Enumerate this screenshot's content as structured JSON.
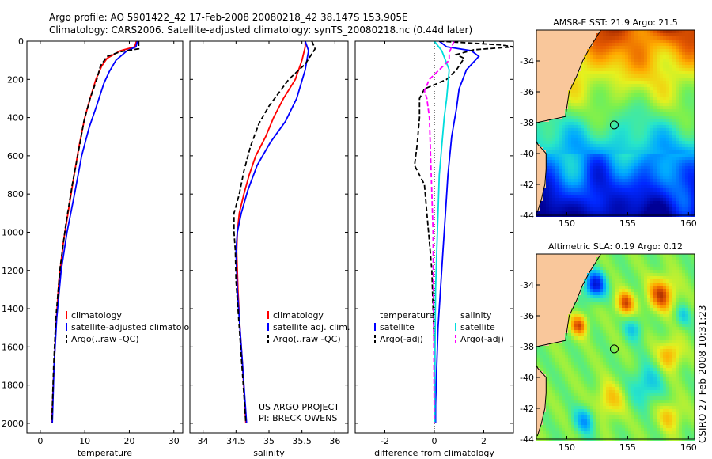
{
  "title_line1": "Argo profile: AO 5901422_42 17-Feb-2008 20080218_42 38.147S 153.905E",
  "title_line2": "Climatology: CARS2006. Satellite-adjusted climatology: synTS_20080218.nc (0.44d later)",
  "side_label": "CSIRO 27-Feb-2008 10:31:23",
  "chart_data": [
    {
      "type": "line",
      "id": "temperature",
      "xlabel": "temperature",
      "ylabel": "",
      "xlim": [
        -3,
        32
      ],
      "ylim": [
        2050,
        0
      ],
      "xticks": [
        0,
        10,
        20,
        30
      ],
      "yticks": [
        0,
        200,
        400,
        600,
        800,
        1000,
        1200,
        1400,
        1600,
        1800,
        2000
      ],
      "legend": [
        "climatology",
        "satellite-adjusted climatology",
        "Argo(..raw -QC)"
      ],
      "series": [
        {
          "name": "climatology",
          "color": "#ff0000",
          "dash": "",
          "points": [
            [
              21.6,
              0
            ],
            [
              21.2,
              30
            ],
            [
              18,
              50
            ],
            [
              15,
              90
            ],
            [
              13.8,
              130
            ],
            [
              12.5,
              200
            ],
            [
              11.2,
              300
            ],
            [
              10,
              400
            ],
            [
              8.7,
              550
            ],
            [
              7.6,
              700
            ],
            [
              6.5,
              860
            ],
            [
              5.2,
              1050
            ],
            [
              4.2,
              1250
            ],
            [
              3.5,
              1500
            ],
            [
              3.0,
              1750
            ],
            [
              2.6,
              2000
            ]
          ]
        },
        {
          "name": "satellite-adjusted climatology",
          "color": "#0000ff",
          "dash": "",
          "points": [
            [
              21.8,
              0
            ],
            [
              21.5,
              30
            ],
            [
              19.5,
              50
            ],
            [
              17,
              100
            ],
            [
              15.5,
              160
            ],
            [
              14.3,
              220
            ],
            [
              12.5,
              350
            ],
            [
              11,
              450
            ],
            [
              9.3,
              600
            ],
            [
              7.7,
              800
            ],
            [
              6,
              1000
            ],
            [
              4.7,
              1200
            ],
            [
              3.7,
              1450
            ],
            [
              3.1,
              1700
            ],
            [
              2.7,
              2000
            ]
          ]
        },
        {
          "name": "Argo(..raw -QC)",
          "color": "#000000",
          "dash": "6,3",
          "points": [
            [
              22.1,
              0
            ],
            [
              22.1,
              40
            ],
            [
              18,
              55
            ],
            [
              15,
              80
            ],
            [
              13.5,
              130
            ],
            [
              12.7,
              200
            ],
            [
              11.2,
              300
            ],
            [
              9.8,
              420
            ],
            [
              8.8,
              550
            ],
            [
              7.2,
              750
            ],
            [
              5.8,
              950
            ],
            [
              4.5,
              1180
            ],
            [
              3.5,
              1450
            ],
            [
              3.0,
              1700
            ],
            [
              2.6,
              2000
            ]
          ]
        }
      ]
    },
    {
      "type": "line",
      "id": "salinity",
      "xlabel": "salinity",
      "xlim": [
        33.8,
        36.2
      ],
      "ylim": [
        2050,
        0
      ],
      "xticks": [
        34,
        34.5,
        35,
        35.5,
        36
      ],
      "legend": [
        "climatology",
        "satellite adj. clim.",
        "Argo(..raw -QC)"
      ],
      "annotation": [
        "US ARGO PROJECT",
        "PI: BRECK OWENS"
      ],
      "series": [
        {
          "name": "climatology",
          "color": "#ff0000",
          "dash": "",
          "points": [
            [
              35.55,
              0
            ],
            [
              35.55,
              30
            ],
            [
              35.5,
              100
            ],
            [
              35.4,
              200
            ],
            [
              35.22,
              300
            ],
            [
              35.07,
              400
            ],
            [
              34.95,
              500
            ],
            [
              34.8,
              600
            ],
            [
              34.7,
              700
            ],
            [
              34.62,
              800
            ],
            [
              34.55,
              900
            ],
            [
              34.52,
              1000
            ],
            [
              34.51,
              1100
            ],
            [
              34.53,
              1300
            ],
            [
              34.56,
              1500
            ],
            [
              34.6,
              1700
            ],
            [
              34.65,
              2000
            ]
          ]
        },
        {
          "name": "satellite adj. clim.",
          "color": "#0000ff",
          "dash": "",
          "points": [
            [
              35.55,
              0
            ],
            [
              35.6,
              50
            ],
            [
              35.55,
              150
            ],
            [
              35.42,
              300
            ],
            [
              35.25,
              420
            ],
            [
              35.02,
              530
            ],
            [
              34.82,
              650
            ],
            [
              34.68,
              780
            ],
            [
              34.58,
              900
            ],
            [
              34.52,
              1000
            ],
            [
              34.5,
              1100
            ],
            [
              34.52,
              1300
            ],
            [
              34.56,
              1500
            ],
            [
              34.6,
              1700
            ],
            [
              34.66,
              2000
            ]
          ]
        },
        {
          "name": "Argo(..raw -QC)",
          "color": "#000000",
          "dash": "6,3",
          "points": [
            [
              35.65,
              0
            ],
            [
              35.7,
              40
            ],
            [
              35.55,
              120
            ],
            [
              35.3,
              200
            ],
            [
              35.15,
              270
            ],
            [
              35,
              340
            ],
            [
              34.85,
              430
            ],
            [
              34.72,
              550
            ],
            [
              34.62,
              680
            ],
            [
              34.55,
              800
            ],
            [
              34.47,
              900
            ],
            [
              34.47,
              1000
            ],
            [
              34.49,
              1100
            ],
            [
              34.5,
              1250
            ],
            [
              34.53,
              1400
            ],
            [
              34.57,
              1600
            ],
            [
              34.61,
              1800
            ],
            [
              34.65,
              2000
            ]
          ]
        }
      ]
    },
    {
      "type": "line",
      "id": "difference",
      "xlabel": "difference from climatology",
      "xlim": [
        -3.2,
        3.2
      ],
      "ylim": [
        2050,
        0
      ],
      "xticks": [
        -2,
        0,
        2
      ],
      "legend_title_left": "temperature",
      "legend_title_right": "salinity",
      "legend": [
        "satellite",
        "Argo(-adj)",
        "satellite",
        "Argo(-adj)"
      ],
      "series": [
        {
          "name": "temperature satellite",
          "color": "#0000ff",
          "dash": "",
          "points": [
            [
              0.2,
              0
            ],
            [
              0.5,
              30
            ],
            [
              1.5,
              50
            ],
            [
              1.8,
              80
            ],
            [
              1.3,
              150
            ],
            [
              1.0,
              250
            ],
            [
              0.9,
              350
            ],
            [
              0.7,
              500
            ],
            [
              0.55,
              700
            ],
            [
              0.45,
              900
            ],
            [
              0.35,
              1100
            ],
            [
              0.25,
              1300
            ],
            [
              0.15,
              1500
            ],
            [
              0.1,
              1700
            ],
            [
              0.05,
              1900
            ],
            [
              0.05,
              2000
            ]
          ]
        },
        {
          "name": "temperature Argo(-adj)",
          "color": "#000000",
          "dash": "6,3",
          "points": [
            [
              0.2,
              0
            ],
            [
              1.5,
              10
            ],
            [
              2.7,
              20
            ],
            [
              3.2,
              30
            ],
            [
              1.6,
              45
            ],
            [
              0.9,
              70
            ],
            [
              1.2,
              90
            ],
            [
              0.9,
              150
            ],
            [
              0.5,
              200
            ],
            [
              -0.4,
              250
            ],
            [
              -0.6,
              300
            ],
            [
              -0.6,
              400
            ],
            [
              -0.7,
              550
            ],
            [
              -0.8,
              650
            ],
            [
              -0.4,
              750
            ],
            [
              -0.3,
              900
            ],
            [
              -0.2,
              1050
            ],
            [
              -0.1,
              1200
            ],
            [
              -0.05,
              1400
            ],
            [
              0,
              1600
            ],
            [
              0,
              2000
            ]
          ]
        },
        {
          "name": "salinity satellite",
          "color": "#00dddd",
          "dash": "",
          "points": [
            [
              0,
              0
            ],
            [
              0.3,
              50
            ],
            [
              0.6,
              150
            ],
            [
              0.5,
              300
            ],
            [
              0.4,
              400
            ],
            [
              0.3,
              550
            ],
            [
              0.2,
              700
            ],
            [
              0.15,
              900
            ],
            [
              0.1,
              1100
            ],
            [
              0.05,
              1300
            ],
            [
              0.03,
              1600
            ],
            [
              0.02,
              2000
            ]
          ]
        },
        {
          "name": "salinity Argo(-adj)",
          "color": "#ff00ff",
          "dash": "6,3",
          "points": [
            [
              0.8,
              0
            ],
            [
              0.6,
              60
            ],
            [
              0.6,
              100
            ],
            [
              0.2,
              150
            ],
            [
              -0.2,
              200
            ],
            [
              -0.4,
              260
            ],
            [
              -0.3,
              300
            ],
            [
              -0.2,
              400
            ],
            [
              -0.15,
              600
            ],
            [
              -0.1,
              800
            ],
            [
              -0.05,
              1000
            ],
            [
              0,
              2000
            ]
          ]
        }
      ]
    },
    {
      "type": "heatmap",
      "id": "sst_map",
      "title": "AMSR-E SST: 21.9 Argo: 21.5",
      "xlim": [
        147.5,
        160.5
      ],
      "ylim": [
        -44,
        -32
      ],
      "xticks": [
        150,
        155,
        160
      ],
      "yticks": [
        -34,
        -36,
        -38,
        -40,
        -42,
        -44
      ],
      "marker": {
        "lon": 153.9,
        "lat": -38.15
      }
    },
    {
      "type": "heatmap",
      "id": "sla_map",
      "title": "Altimetric SLA: 0.19 Argo: 0.12",
      "xlim": [
        147.5,
        160.5
      ],
      "ylim": [
        -44,
        -32
      ],
      "xticks": [
        150,
        155,
        160
      ],
      "yticks": [
        -34,
        -36,
        -38,
        -40,
        -42,
        -44
      ],
      "marker": {
        "lon": 153.9,
        "lat": -38.15
      }
    }
  ]
}
